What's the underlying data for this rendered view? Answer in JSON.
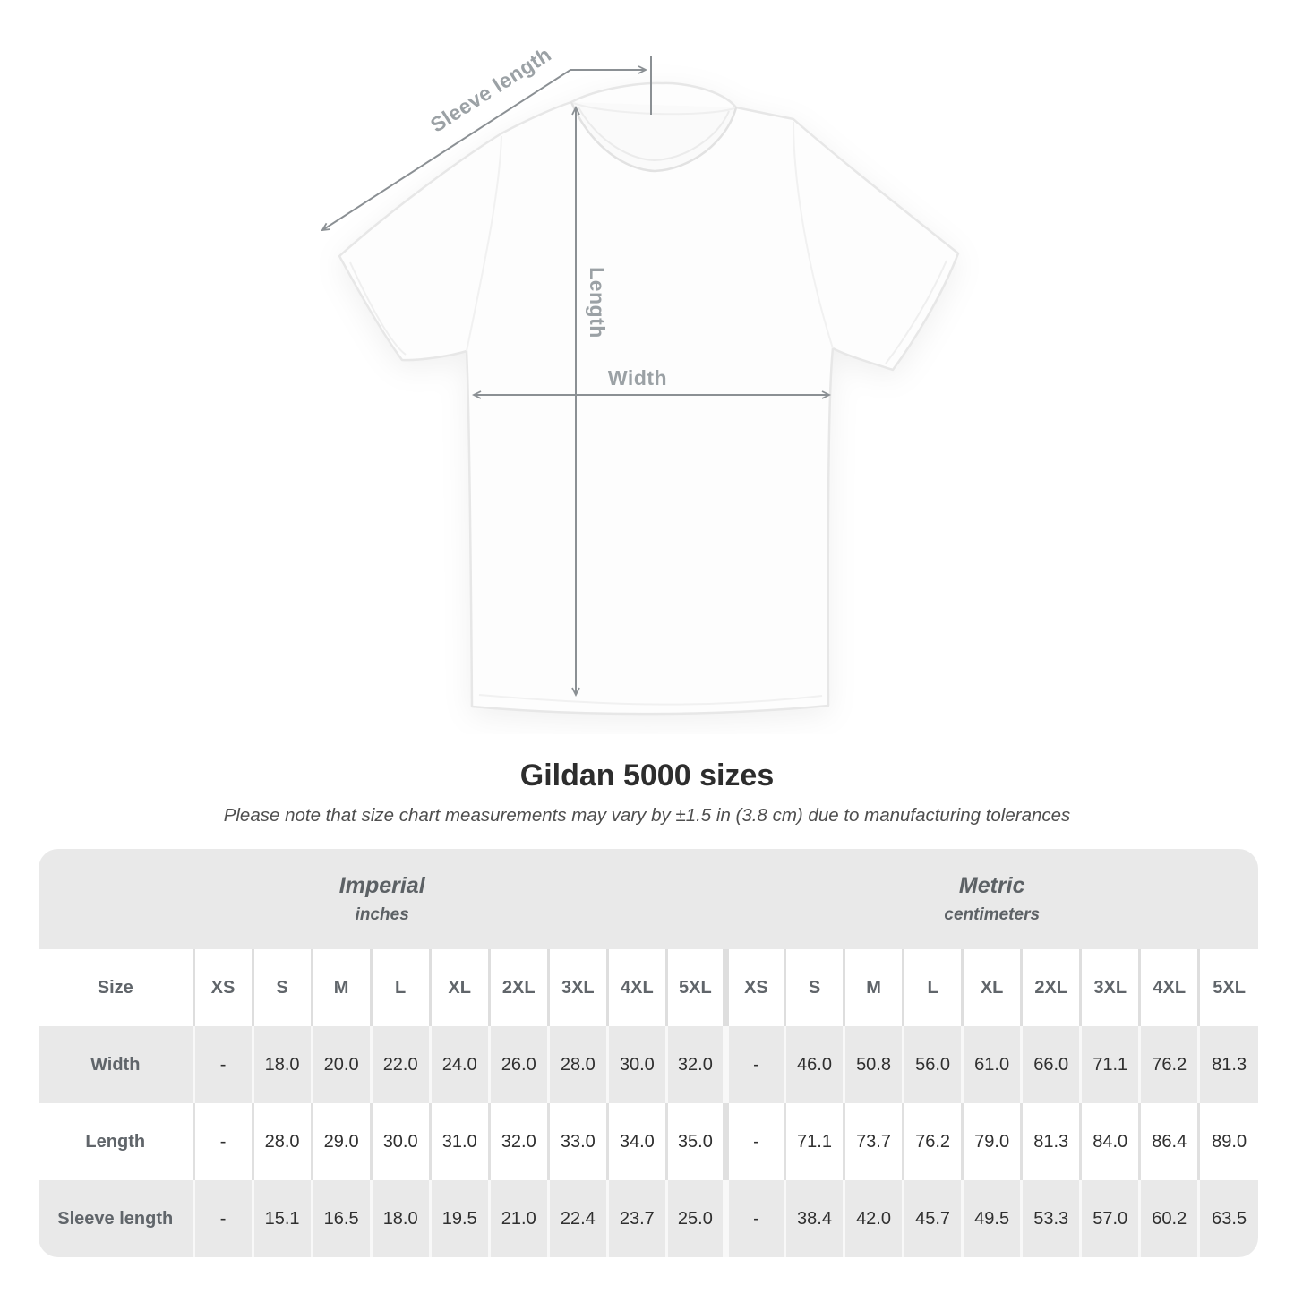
{
  "diagram": {
    "sleeve_length_label": "Sleeve length",
    "length_label": "Length",
    "width_label": "Width"
  },
  "title": "Gildan 5000 sizes",
  "subtitle": "Please note that size chart measurements may vary by ±1.5 in (3.8 cm) due to manufacturing tolerances",
  "table": {
    "groups": [
      {
        "label": "Imperial",
        "unit": "inches"
      },
      {
        "label": "Metric",
        "unit": "centimeters"
      }
    ],
    "size_header": "Size",
    "sizes": [
      "XS",
      "S",
      "M",
      "L",
      "XL",
      "2XL",
      "3XL",
      "4XL",
      "5XL"
    ],
    "rows": [
      {
        "label": "Width",
        "imperial": [
          "-",
          "18.0",
          "20.0",
          "22.0",
          "24.0",
          "26.0",
          "28.0",
          "30.0",
          "32.0"
        ],
        "metric": [
          "-",
          "46.0",
          "50.8",
          "56.0",
          "61.0",
          "66.0",
          "71.1",
          "76.2",
          "81.3"
        ]
      },
      {
        "label": "Length",
        "imperial": [
          "-",
          "28.0",
          "29.0",
          "30.0",
          "31.0",
          "32.0",
          "33.0",
          "34.0",
          "35.0"
        ],
        "metric": [
          "-",
          "71.1",
          "73.7",
          "76.2",
          "79.0",
          "81.3",
          "84.0",
          "86.4",
          "89.0"
        ]
      },
      {
        "label": "Sleeve length",
        "imperial": [
          "-",
          "15.1",
          "16.5",
          "18.0",
          "19.5",
          "21.0",
          "22.4",
          "23.7",
          "25.0"
        ],
        "metric": [
          "-",
          "38.4",
          "42.0",
          "45.7",
          "49.5",
          "53.3",
          "57.0",
          "60.2",
          "63.5"
        ]
      }
    ]
  },
  "colors": {
    "table_band": "#e9e9e9",
    "row_stripe": "#e9e9e9",
    "arrow_gray": "#8b9094",
    "diagram_label_gray": "#9ba1a5",
    "header_text_gray": "#60656a",
    "number_text": "#2f2f2f",
    "title_text": "#2d2d2d"
  }
}
